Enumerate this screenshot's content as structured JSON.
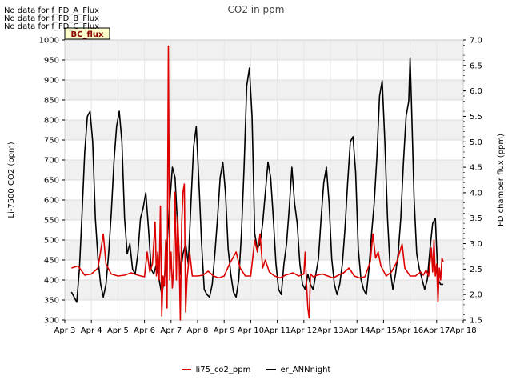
{
  "chart_data": {
    "type": "line",
    "title": "CO2 in ppm",
    "ylabel": "Li-7500 CO2 (ppm)",
    "y2label": "FD chamber flux (ppm)",
    "xlim": [
      3,
      18
    ],
    "ylim": [
      300,
      1000
    ],
    "y2lim": [
      1.5,
      7.0
    ],
    "xticks": [
      {
        "label": "Apr 3",
        "value": 3
      },
      {
        "label": "Apr 4",
        "value": 4
      },
      {
        "label": "Apr 5",
        "value": 5
      },
      {
        "label": "Apr 6",
        "value": 6
      },
      {
        "label": "Apr 7",
        "value": 7
      },
      {
        "label": "Apr 8",
        "value": 8
      },
      {
        "label": "Apr 9",
        "value": 9
      },
      {
        "label": "Apr 10",
        "value": 10
      },
      {
        "label": "Apr 11",
        "value": 11
      },
      {
        "label": "Apr 12",
        "value": 12
      },
      {
        "label": "Apr 13",
        "value": 13
      },
      {
        "label": "Apr 14",
        "value": 14
      },
      {
        "label": "Apr 15",
        "value": 15
      },
      {
        "label": "Apr 16",
        "value": 16
      },
      {
        "label": "Apr 17",
        "value": 17
      },
      {
        "label": "Apr 18",
        "value": 18
      }
    ],
    "yticks": [
      300,
      350,
      400,
      450,
      500,
      550,
      600,
      650,
      700,
      750,
      800,
      850,
      900,
      950,
      1000
    ],
    "y2ticks": [
      "1.5",
      "2.0",
      "2.5",
      "3.0",
      "3.5",
      "4.0",
      "4.5",
      "5.0",
      "5.5",
      "6.0",
      "6.5",
      "7.0"
    ],
    "series": [
      {
        "name": "li75_co2_ppm",
        "color": "#dd0000",
        "axis": "left",
        "points": [
          [
            3.25,
            430
          ],
          [
            3.5,
            435
          ],
          [
            3.75,
            412
          ],
          [
            4.0,
            415
          ],
          [
            4.25,
            430
          ],
          [
            4.45,
            515
          ],
          [
            4.55,
            440
          ],
          [
            4.75,
            415
          ],
          [
            5.0,
            410
          ],
          [
            5.25,
            412
          ],
          [
            5.5,
            418
          ],
          [
            5.75,
            412
          ],
          [
            6.0,
            408
          ],
          [
            6.1,
            470
          ],
          [
            6.2,
            420
          ],
          [
            6.3,
            440
          ],
          [
            6.4,
            545
          ],
          [
            6.45,
            410
          ],
          [
            6.5,
            470
          ],
          [
            6.55,
            400
          ],
          [
            6.6,
            585
          ],
          [
            6.65,
            310
          ],
          [
            6.7,
            410
          ],
          [
            6.75,
            385
          ],
          [
            6.8,
            500
          ],
          [
            6.85,
            330
          ],
          [
            6.9,
            985
          ],
          [
            6.95,
            400
          ],
          [
            7.0,
            470
          ],
          [
            7.05,
            380
          ],
          [
            7.1,
            430
          ],
          [
            7.15,
            620
          ],
          [
            7.2,
            400
          ],
          [
            7.25,
            560
          ],
          [
            7.3,
            470
          ],
          [
            7.35,
            300
          ],
          [
            7.4,
            540
          ],
          [
            7.45,
            620
          ],
          [
            7.5,
            640
          ],
          [
            7.55,
            320
          ],
          [
            7.6,
            400
          ],
          [
            7.7,
            470
          ],
          [
            7.8,
            410
          ],
          [
            8.0,
            410
          ],
          [
            8.2,
            412
          ],
          [
            8.4,
            422
          ],
          [
            8.6,
            410
          ],
          [
            8.8,
            405
          ],
          [
            9.0,
            410
          ],
          [
            9.2,
            440
          ],
          [
            9.45,
            470
          ],
          [
            9.6,
            430
          ],
          [
            9.8,
            410
          ],
          [
            10.0,
            410
          ],
          [
            10.15,
            500
          ],
          [
            10.25,
            470
          ],
          [
            10.35,
            515
          ],
          [
            10.45,
            430
          ],
          [
            10.55,
            450
          ],
          [
            10.7,
            420
          ],
          [
            10.9,
            410
          ],
          [
            11.1,
            405
          ],
          [
            11.3,
            412
          ],
          [
            11.6,
            418
          ],
          [
            11.8,
            410
          ],
          [
            12.0,
            415
          ],
          [
            12.05,
            470
          ],
          [
            12.1,
            390
          ],
          [
            12.15,
            330
          ],
          [
            12.2,
            305
          ],
          [
            12.25,
            415
          ],
          [
            12.35,
            408
          ],
          [
            12.5,
            412
          ],
          [
            12.7,
            415
          ],
          [
            12.9,
            410
          ],
          [
            13.1,
            405
          ],
          [
            13.3,
            412
          ],
          [
            13.5,
            418
          ],
          [
            13.7,
            430
          ],
          [
            13.9,
            410
          ],
          [
            14.1,
            405
          ],
          [
            14.3,
            408
          ],
          [
            14.5,
            445
          ],
          [
            14.6,
            515
          ],
          [
            14.7,
            455
          ],
          [
            14.8,
            470
          ],
          [
            14.9,
            435
          ],
          [
            15.1,
            410
          ],
          [
            15.3,
            420
          ],
          [
            15.5,
            445
          ],
          [
            15.7,
            490
          ],
          [
            15.8,
            430
          ],
          [
            16.0,
            410
          ],
          [
            16.2,
            410
          ],
          [
            16.4,
            420
          ],
          [
            16.5,
            412
          ],
          [
            16.6,
            425
          ],
          [
            16.7,
            410
          ],
          [
            16.8,
            480
          ],
          [
            16.85,
            420
          ],
          [
            16.9,
            500
          ],
          [
            16.95,
            410
          ],
          [
            17.0,
            440
          ],
          [
            17.05,
            345
          ],
          [
            17.1,
            430
          ],
          [
            17.15,
            400
          ],
          [
            17.2,
            455
          ],
          [
            17.25,
            445
          ]
        ]
      },
      {
        "name": "er_ANNnight",
        "color": "#000000",
        "axis": "right",
        "points": [
          [
            3.25,
            2.05
          ],
          [
            3.35,
            1.95
          ],
          [
            3.45,
            1.85
          ],
          [
            3.55,
            2.5
          ],
          [
            3.65,
            3.6
          ],
          [
            3.75,
            4.8
          ],
          [
            3.85,
            5.5
          ],
          [
            3.95,
            5.6
          ],
          [
            4.05,
            5.0
          ],
          [
            4.15,
            3.5
          ],
          [
            4.25,
            2.7
          ],
          [
            4.35,
            2.2
          ],
          [
            4.45,
            1.95
          ],
          [
            4.55,
            2.2
          ],
          [
            4.65,
            2.8
          ],
          [
            4.75,
            3.6
          ],
          [
            4.85,
            4.6
          ],
          [
            4.95,
            5.3
          ],
          [
            5.05,
            5.6
          ],
          [
            5.15,
            5.0
          ],
          [
            5.25,
            3.5
          ],
          [
            5.35,
            2.8
          ],
          [
            5.45,
            3.0
          ],
          [
            5.55,
            2.5
          ],
          [
            5.65,
            2.4
          ],
          [
            5.75,
            2.8
          ],
          [
            5.85,
            3.5
          ],
          [
            5.95,
            3.7
          ],
          [
            6.05,
            4.0
          ],
          [
            6.15,
            3.3
          ],
          [
            6.25,
            2.5
          ],
          [
            6.35,
            2.4
          ],
          [
            6.45,
            2.6
          ],
          [
            6.55,
            2.3
          ],
          [
            6.65,
            2.0
          ],
          [
            6.75,
            2.3
          ],
          [
            6.85,
            3.0
          ],
          [
            6.95,
            3.8
          ],
          [
            7.05,
            4.5
          ],
          [
            7.15,
            4.3
          ],
          [
            7.25,
            3.3
          ],
          [
            7.35,
            2.4
          ],
          [
            7.45,
            2.8
          ],
          [
            7.55,
            3.0
          ],
          [
            7.65,
            2.6
          ],
          [
            7.75,
            3.8
          ],
          [
            7.85,
            4.9
          ],
          [
            7.95,
            5.3
          ],
          [
            8.05,
            4.2
          ],
          [
            8.15,
            3.0
          ],
          [
            8.25,
            2.1
          ],
          [
            8.35,
            2.0
          ],
          [
            8.45,
            1.95
          ],
          [
            8.55,
            2.2
          ],
          [
            8.65,
            2.8
          ],
          [
            8.75,
            3.5
          ],
          [
            8.85,
            4.3
          ],
          [
            8.95,
            4.6
          ],
          [
            9.05,
            4.0
          ],
          [
            9.15,
            2.9
          ],
          [
            9.25,
            2.4
          ],
          [
            9.35,
            2.05
          ],
          [
            9.45,
            1.95
          ],
          [
            9.55,
            2.3
          ],
          [
            9.65,
            3.2
          ],
          [
            9.75,
            4.5
          ],
          [
            9.85,
            6.1
          ],
          [
            9.95,
            6.45
          ],
          [
            10.05,
            5.5
          ],
          [
            10.15,
            3.2
          ],
          [
            10.25,
            2.9
          ],
          [
            10.35,
            3.0
          ],
          [
            10.45,
            3.4
          ],
          [
            10.55,
            4.0
          ],
          [
            10.65,
            4.6
          ],
          [
            10.75,
            4.3
          ],
          [
            10.85,
            3.5
          ],
          [
            10.95,
            2.6
          ],
          [
            11.05,
            2.1
          ],
          [
            11.15,
            2.0
          ],
          [
            11.25,
            2.6
          ],
          [
            11.35,
            3.0
          ],
          [
            11.45,
            3.7
          ],
          [
            11.55,
            4.5
          ],
          [
            11.65,
            3.8
          ],
          [
            11.75,
            3.4
          ],
          [
            11.85,
            2.6
          ],
          [
            11.95,
            2.2
          ],
          [
            12.05,
            2.1
          ],
          [
            12.15,
            2.4
          ],
          [
            12.25,
            2.2
          ],
          [
            12.35,
            2.1
          ],
          [
            12.45,
            2.4
          ],
          [
            12.55,
            2.7
          ],
          [
            12.65,
            3.5
          ],
          [
            12.75,
            4.2
          ],
          [
            12.85,
            4.5
          ],
          [
            12.95,
            3.8
          ],
          [
            13.05,
            2.7
          ],
          [
            13.15,
            2.2
          ],
          [
            13.25,
            2.0
          ],
          [
            13.35,
            2.2
          ],
          [
            13.45,
            2.6
          ],
          [
            13.55,
            3.3
          ],
          [
            13.65,
            4.2
          ],
          [
            13.75,
            5.0
          ],
          [
            13.85,
            5.1
          ],
          [
            13.95,
            4.4
          ],
          [
            14.05,
            2.9
          ],
          [
            14.15,
            2.3
          ],
          [
            14.25,
            2.1
          ],
          [
            14.35,
            2.0
          ],
          [
            14.45,
            2.5
          ],
          [
            14.55,
            3.2
          ],
          [
            14.65,
            3.8
          ],
          [
            14.75,
            4.7
          ],
          [
            14.85,
            5.9
          ],
          [
            14.95,
            6.2
          ],
          [
            15.05,
            5.0
          ],
          [
            15.15,
            3.5
          ],
          [
            15.25,
            2.5
          ],
          [
            15.35,
            2.1
          ],
          [
            15.45,
            2.4
          ],
          [
            15.55,
            2.8
          ],
          [
            15.65,
            3.5
          ],
          [
            15.75,
            4.6
          ],
          [
            15.85,
            5.5
          ],
          [
            15.95,
            5.8
          ],
          [
            16.0,
            6.65
          ],
          [
            16.05,
            5.8
          ],
          [
            16.15,
            3.9
          ],
          [
            16.25,
            2.8
          ],
          [
            16.35,
            2.5
          ],
          [
            16.45,
            2.3
          ],
          [
            16.55,
            2.1
          ],
          [
            16.65,
            2.3
          ],
          [
            16.75,
            2.9
          ],
          [
            16.85,
            3.4
          ],
          [
            16.95,
            3.5
          ],
          [
            17.05,
            2.3
          ],
          [
            17.15,
            2.2
          ],
          [
            17.25,
            2.2
          ]
        ]
      }
    ],
    "annotations": [
      "No data for f_FD_A_Flux",
      "No data for f_FD_B_Flux",
      "No data for f_FD_C_Flux"
    ],
    "badge": "BC_flux"
  }
}
